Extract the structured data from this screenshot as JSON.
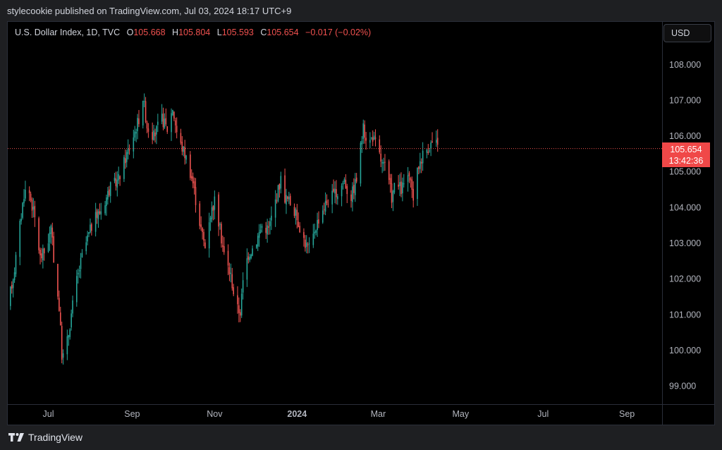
{
  "header": {
    "published": "stylecookie published on TradingView.com, Jul 03, 2024 18:17 UTC+9"
  },
  "legend": {
    "symbol": "U.S. Dollar Index, 1D, TVC",
    "open_label": "O",
    "open": "105.668",
    "high_label": "H",
    "high": "105.804",
    "low_label": "L",
    "low": "105.593",
    "close_label": "C",
    "close": "105.654",
    "change": "−0.017 (−0.02%)"
  },
  "currency_button": "USD",
  "last_price": {
    "value": "105.654",
    "countdown": "13:42:36"
  },
  "footer": {
    "brand": "TradingView"
  },
  "colors": {
    "up": "#26a69a",
    "down": "#ef5350",
    "background": "#000000",
    "last_price_tag": "#f04848"
  },
  "chart_data": {
    "type": "candlestick",
    "symbol": "U.S. Dollar Index",
    "interval": "1D",
    "ylim": [
      98.5,
      109.2
    ],
    "y_ticks": [
      "99.000",
      "100.000",
      "101.000",
      "102.000",
      "103.000",
      "104.000",
      "105.000",
      "106.000",
      "107.000",
      "108.000"
    ],
    "x_ticks": [
      "Jul",
      "Sep",
      "Nov",
      "2024",
      "Mar",
      "May",
      "Jul",
      "Sep"
    ],
    "x_range_days": [
      -30,
      454
    ],
    "x_tick_days": [
      0,
      62,
      123,
      184,
      244,
      305,
      366,
      428
    ],
    "last_price": 105.654,
    "price_path": [
      [
        -30,
        101.2
      ],
      [
        -25,
        102.3
      ],
      [
        -18,
        104.4
      ],
      [
        -15,
        104.6
      ],
      [
        -10,
        103.7
      ],
      [
        -6,
        102.6
      ],
      [
        -2,
        102.8
      ],
      [
        2,
        103.4
      ],
      [
        5,
        102.2
      ],
      [
        8,
        101.2
      ],
      [
        10,
        99.9
      ],
      [
        12,
        99.8
      ],
      [
        15,
        100.5
      ],
      [
        20,
        101.8
      ],
      [
        26,
        102.8
      ],
      [
        33,
        103.6
      ],
      [
        40,
        104.0
      ],
      [
        45,
        104.5
      ],
      [
        52,
        104.8
      ],
      [
        58,
        105.5
      ],
      [
        62,
        105.9
      ],
      [
        67,
        106.5
      ],
      [
        70,
        107.1
      ],
      [
        73,
        106.3
      ],
      [
        78,
        106.0
      ],
      [
        84,
        106.5
      ],
      [
        88,
        106.2
      ],
      [
        92,
        106.8
      ],
      [
        96,
        105.9
      ],
      [
        100,
        105.6
      ],
      [
        103,
        105.3
      ],
      [
        107,
        104.7
      ],
      [
        110,
        104.0
      ],
      [
        113,
        103.4
      ],
      [
        116,
        102.9
      ],
      [
        119,
        103.7
      ],
      [
        123,
        104.2
      ],
      [
        126,
        103.6
      ],
      [
        130,
        102.7
      ],
      [
        135,
        102.1
      ],
      [
        139,
        101.2
      ],
      [
        142,
        101.1
      ],
      [
        145,
        102.3
      ],
      [
        148,
        102.7
      ],
      [
        153,
        103.0
      ],
      [
        158,
        103.5
      ],
      [
        163,
        103.4
      ],
      [
        168,
        104.2
      ],
      [
        172,
        104.8
      ],
      [
        175,
        104.3
      ],
      [
        180,
        104.1
      ],
      [
        185,
        103.6
      ],
      [
        190,
        103.0
      ],
      [
        194,
        102.8
      ],
      [
        197,
        103.4
      ],
      [
        202,
        103.9
      ],
      [
        208,
        104.3
      ],
      [
        214,
        104.4
      ],
      [
        219,
        104.8
      ],
      [
        223,
        104.2
      ],
      [
        228,
        104.8
      ],
      [
        231,
        105.7
      ],
      [
        233,
        106.2
      ],
      [
        237,
        105.8
      ],
      [
        240,
        106.0
      ],
      [
        244,
        105.6
      ],
      [
        247,
        105.2
      ],
      [
        250,
        105.1
      ],
      [
        254,
        104.3
      ],
      [
        257,
        104.7
      ],
      [
        261,
        104.5
      ],
      [
        266,
        104.9
      ],
      [
        270,
        104.3
      ],
      [
        274,
        105.2
      ],
      [
        277,
        105.5
      ],
      [
        281,
        105.7
      ],
      [
        286,
        105.9
      ],
      [
        288,
        105.654
      ]
    ]
  }
}
